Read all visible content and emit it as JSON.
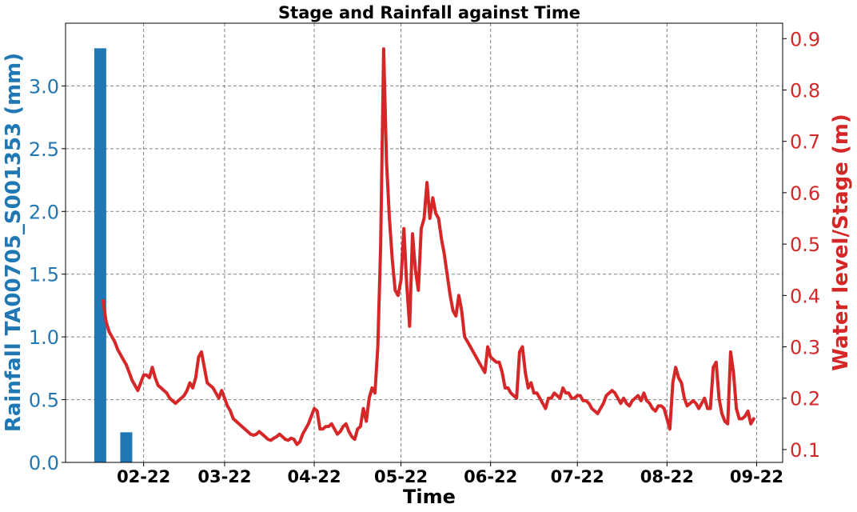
{
  "chart_data": {
    "type": "bar+line",
    "title": "Stage and Rainfall against Time",
    "xlabel": "Time",
    "x_ticks": [
      "02-22",
      "03-22",
      "04-22",
      "05-22",
      "06-22",
      "07-22",
      "08-22",
      "09-22"
    ],
    "x_tick_dates": [
      "2022-02-01",
      "2022-03-01",
      "2022-04-01",
      "2022-05-01",
      "2022-06-01",
      "2022-07-01",
      "2022-08-01",
      "2022-09-01"
    ],
    "xlim": [
      "2022-01-05",
      "2022-09-10"
    ],
    "grid": true,
    "left_axis": {
      "label": "Rainfall TA00705_S001353 (mm)",
      "color": "#1f77b4",
      "ylim": [
        0,
        3.5
      ],
      "ticks": [
        "0.0",
        "0.5",
        "1.0",
        "1.5",
        "2.0",
        "2.5",
        "3.0"
      ],
      "tick_values": [
        0,
        0.5,
        1.0,
        1.5,
        2.0,
        2.5,
        3.0
      ]
    },
    "right_axis": {
      "label": "Water level/Stage (m)",
      "color": "#d62728",
      "ylim": [
        0.075,
        0.93
      ],
      "ticks": [
        "0.1",
        "0.2",
        "0.3",
        "0.4",
        "0.5",
        "0.6",
        "0.7",
        "0.8",
        "0.9"
      ],
      "tick_values": [
        0.1,
        0.2,
        0.3,
        0.4,
        0.5,
        0.6,
        0.7,
        0.8,
        0.9
      ]
    },
    "rainfall": {
      "x": [
        "2022-01-17",
        "2022-01-26"
      ],
      "values": [
        3.3,
        0.24
      ]
    },
    "stage": {
      "x": [
        "2022-01-18",
        "2022-01-19",
        "2022-01-20",
        "2022-01-21",
        "2022-01-22",
        "2022-01-23",
        "2022-01-24",
        "2022-01-25",
        "2022-01-26",
        "2022-01-27",
        "2022-01-28",
        "2022-01-29",
        "2022-01-30",
        "2022-01-31",
        "2022-02-01",
        "2022-02-02",
        "2022-02-03",
        "2022-02-04",
        "2022-02-05",
        "2022-02-06",
        "2022-02-07",
        "2022-02-08",
        "2022-02-09",
        "2022-02-10",
        "2022-02-11",
        "2022-02-12",
        "2022-02-13",
        "2022-02-14",
        "2022-02-15",
        "2022-02-16",
        "2022-02-17",
        "2022-02-18",
        "2022-02-19",
        "2022-02-20",
        "2022-02-21",
        "2022-02-22",
        "2022-02-23",
        "2022-02-24",
        "2022-02-25",
        "2022-02-26",
        "2022-02-27",
        "2022-02-28",
        "2022-03-01",
        "2022-03-02",
        "2022-03-03",
        "2022-03-04",
        "2022-03-05",
        "2022-03-06",
        "2022-03-07",
        "2022-03-08",
        "2022-03-09",
        "2022-03-10",
        "2022-03-11",
        "2022-03-12",
        "2022-03-13",
        "2022-03-14",
        "2022-03-15",
        "2022-03-16",
        "2022-03-17",
        "2022-03-18",
        "2022-03-19",
        "2022-03-20",
        "2022-03-21",
        "2022-03-22",
        "2022-03-23",
        "2022-03-24",
        "2022-03-25",
        "2022-03-26",
        "2022-03-27",
        "2022-03-28",
        "2022-03-29",
        "2022-03-30",
        "2022-03-31",
        "2022-04-01",
        "2022-04-02",
        "2022-04-03",
        "2022-04-04",
        "2022-04-05",
        "2022-04-06",
        "2022-04-07",
        "2022-04-08",
        "2022-04-09",
        "2022-04-10",
        "2022-04-11",
        "2022-04-12",
        "2022-04-13",
        "2022-04-14",
        "2022-04-15",
        "2022-04-16",
        "2022-04-17",
        "2022-04-18",
        "2022-04-19",
        "2022-04-20",
        "2022-04-21",
        "2022-04-22",
        "2022-04-23",
        "2022-04-24",
        "2022-04-25",
        "2022-04-26",
        "2022-04-27",
        "2022-04-28",
        "2022-04-29",
        "2022-04-30",
        "2022-05-01",
        "2022-05-02",
        "2022-05-03",
        "2022-05-04",
        "2022-05-05",
        "2022-05-06",
        "2022-05-07",
        "2022-05-08",
        "2022-05-09",
        "2022-05-10",
        "2022-05-11",
        "2022-05-12",
        "2022-05-13",
        "2022-05-14",
        "2022-05-15",
        "2022-05-16",
        "2022-05-17",
        "2022-05-18",
        "2022-05-19",
        "2022-05-20",
        "2022-05-21",
        "2022-05-22",
        "2022-05-23",
        "2022-05-24",
        "2022-05-25",
        "2022-05-26",
        "2022-05-27",
        "2022-05-28",
        "2022-05-29",
        "2022-05-30",
        "2022-05-31",
        "2022-06-01",
        "2022-06-02",
        "2022-06-03",
        "2022-06-04",
        "2022-06-05",
        "2022-06-06",
        "2022-06-07",
        "2022-06-08",
        "2022-06-09",
        "2022-06-10",
        "2022-06-11",
        "2022-06-12",
        "2022-06-13",
        "2022-06-14",
        "2022-06-15",
        "2022-06-16",
        "2022-06-17",
        "2022-06-18",
        "2022-06-19",
        "2022-06-20",
        "2022-06-21",
        "2022-06-22",
        "2022-06-23",
        "2022-06-24",
        "2022-06-25",
        "2022-06-26",
        "2022-06-27",
        "2022-06-28",
        "2022-06-29",
        "2022-06-30",
        "2022-07-01",
        "2022-07-02",
        "2022-07-03",
        "2022-07-04",
        "2022-07-05",
        "2022-07-06",
        "2022-07-07",
        "2022-07-08",
        "2022-07-09",
        "2022-07-10",
        "2022-07-11",
        "2022-07-12",
        "2022-07-13",
        "2022-07-14",
        "2022-07-15",
        "2022-07-16",
        "2022-07-17",
        "2022-07-18",
        "2022-07-19",
        "2022-07-20",
        "2022-07-21",
        "2022-07-22",
        "2022-07-23",
        "2022-07-24",
        "2022-07-25",
        "2022-07-26",
        "2022-07-27",
        "2022-07-28",
        "2022-07-29",
        "2022-07-30",
        "2022-07-31",
        "2022-08-01",
        "2022-08-02",
        "2022-08-03",
        "2022-08-04",
        "2022-08-05",
        "2022-08-06",
        "2022-08-07",
        "2022-08-08",
        "2022-08-09",
        "2022-08-10",
        "2022-08-11",
        "2022-08-12",
        "2022-08-13",
        "2022-08-14",
        "2022-08-15",
        "2022-08-16",
        "2022-08-17",
        "2022-08-18",
        "2022-08-19",
        "2022-08-20",
        "2022-08-21",
        "2022-08-22",
        "2022-08-23",
        "2022-08-24",
        "2022-08-25",
        "2022-08-26",
        "2022-08-27",
        "2022-08-28",
        "2022-08-29",
        "2022-08-30",
        "2022-08-31"
      ],
      "values": [
        0.39,
        0.35,
        0.33,
        0.32,
        0.31,
        0.295,
        0.285,
        0.275,
        0.265,
        0.25,
        0.235,
        0.225,
        0.215,
        0.23,
        0.245,
        0.245,
        0.24,
        0.26,
        0.24,
        0.225,
        0.22,
        0.215,
        0.21,
        0.2,
        0.195,
        0.19,
        0.195,
        0.2,
        0.205,
        0.215,
        0.23,
        0.22,
        0.24,
        0.28,
        0.29,
        0.26,
        0.23,
        0.225,
        0.22,
        0.21,
        0.2,
        0.215,
        0.2,
        0.185,
        0.175,
        0.16,
        0.155,
        0.15,
        0.145,
        0.14,
        0.135,
        0.13,
        0.128,
        0.13,
        0.135,
        0.13,
        0.125,
        0.12,
        0.118,
        0.122,
        0.125,
        0.13,
        0.125,
        0.12,
        0.118,
        0.122,
        0.12,
        0.11,
        0.115,
        0.13,
        0.14,
        0.15,
        0.165,
        0.18,
        0.175,
        0.14,
        0.14,
        0.145,
        0.145,
        0.15,
        0.14,
        0.13,
        0.135,
        0.145,
        0.15,
        0.135,
        0.125,
        0.12,
        0.14,
        0.145,
        0.18,
        0.155,
        0.2,
        0.22,
        0.21,
        0.3,
        0.5,
        0.88,
        0.66,
        0.55,
        0.47,
        0.41,
        0.4,
        0.43,
        0.53,
        0.42,
        0.34,
        0.52,
        0.45,
        0.41,
        0.53,
        0.55,
        0.62,
        0.55,
        0.59,
        0.56,
        0.55,
        0.51,
        0.48,
        0.44,
        0.4,
        0.37,
        0.36,
        0.4,
        0.37,
        0.32,
        0.31,
        0.3,
        0.29,
        0.28,
        0.27,
        0.26,
        0.25,
        0.3,
        0.28,
        0.275,
        0.27,
        0.27,
        0.25,
        0.22,
        0.22,
        0.21,
        0.205,
        0.2,
        0.29,
        0.3,
        0.25,
        0.22,
        0.23,
        0.21,
        0.21,
        0.2,
        0.19,
        0.18,
        0.2,
        0.2,
        0.21,
        0.205,
        0.2,
        0.22,
        0.21,
        0.21,
        0.2,
        0.2,
        0.205,
        0.205,
        0.195,
        0.195,
        0.19,
        0.18,
        0.175,
        0.17,
        0.18,
        0.19,
        0.205,
        0.21,
        0.215,
        0.21,
        0.2,
        0.19,
        0.2,
        0.19,
        0.185,
        0.195,
        0.2,
        0.205,
        0.195,
        0.21,
        0.195,
        0.19,
        0.18,
        0.175,
        0.185,
        0.185,
        0.18,
        0.16,
        0.14,
        0.23,
        0.26,
        0.24,
        0.23,
        0.2,
        0.185,
        0.19,
        0.195,
        0.19,
        0.18,
        0.19,
        0.2,
        0.18,
        0.18,
        0.26,
        0.27,
        0.2,
        0.17,
        0.155,
        0.15,
        0.29,
        0.25,
        0.18,
        0.16,
        0.16,
        0.165,
        0.175,
        0.15,
        0.16
      ]
    }
  }
}
